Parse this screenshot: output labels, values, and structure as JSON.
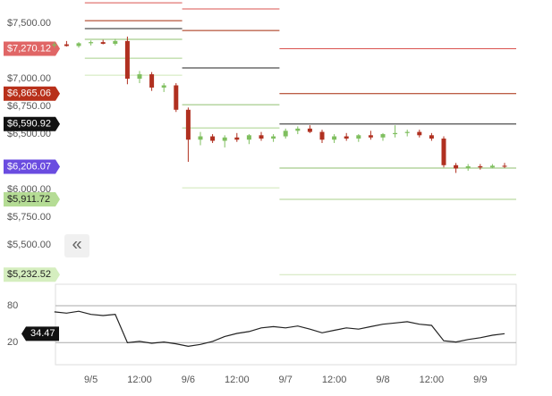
{
  "chart_data": [
    {
      "type": "candlestick",
      "categories": [
        null,
        null,
        null,
        "9/5",
        null,
        null,
        null,
        "12:00",
        null,
        null,
        null,
        "9/6",
        null,
        null,
        null,
        "12:00",
        null,
        null,
        null,
        "9/7",
        null,
        null,
        null,
        "12:00",
        null,
        null,
        null,
        "9/8",
        null,
        null,
        null,
        "12:00",
        null,
        null,
        null,
        "9/9",
        null,
        null
      ],
      "open": [
        7300,
        7310,
        7295,
        7320,
        7330,
        7315,
        7340,
        7000,
        7040,
        6920,
        6940,
        6720,
        6450,
        6480,
        6440,
        6470,
        6450,
        6490,
        6460,
        6480,
        6530,
        6550,
        6520,
        6450,
        6480,
        6460,
        6490,
        6470,
        6500,
        6510,
        6520,
        6490,
        6460,
        6220,
        6190,
        6210,
        6200,
        6215
      ],
      "high": [
        7330,
        7340,
        7330,
        7345,
        7350,
        7360,
        7380,
        7070,
        7060,
        6960,
        6960,
        6740,
        6520,
        6500,
        6490,
        6510,
        6500,
        6520,
        6500,
        6550,
        6570,
        6580,
        6540,
        6500,
        6510,
        6500,
        6530,
        6510,
        6580,
        6540,
        6540,
        6510,
        6480,
        6240,
        6230,
        6230,
        6230,
        6240
      ],
      "low": [
        7280,
        7290,
        7280,
        7300,
        7310,
        7300,
        6950,
        6960,
        6890,
        6880,
        6700,
        6250,
        6400,
        6420,
        6380,
        6430,
        6410,
        6440,
        6430,
        6460,
        6500,
        6510,
        6420,
        6420,
        6440,
        6430,
        6450,
        6440,
        6470,
        6480,
        6470,
        6440,
        6200,
        6150,
        6170,
        6180,
        6190,
        6195
      ],
      "close": [
        7310,
        7295,
        7320,
        7330,
        7315,
        7340,
        7000,
        7040,
        6920,
        6940,
        6720,
        6450,
        6480,
        6440,
        6470,
        6450,
        6490,
        6460,
        6480,
        6530,
        6550,
        6520,
        6450,
        6480,
        6460,
        6490,
        6470,
        6500,
        6510,
        6520,
        6490,
        6460,
        6220,
        6190,
        6210,
        6200,
        6215,
        6206.07
      ],
      "up_color": "#7fbf5f",
      "down_color": "#b03020",
      "ylim": [
        5170,
        7710
      ],
      "yticks": [
        {
          "value": 7500,
          "label": "$7,500.00"
        },
        {
          "value": 7000,
          "label": "$7,000.00"
        },
        {
          "value": 6750,
          "label": "$6,750.00"
        },
        {
          "value": 6500,
          "label": "$6,500.00"
        },
        {
          "value": 6000,
          "label": "$6,000.00"
        },
        {
          "value": 5750,
          "label": "$5,750.00"
        },
        {
          "value": 5500,
          "label": "$5,500.00"
        }
      ],
      "pivot_levels": [
        [
          7685,
          7524,
          7452,
          7355,
          7185,
          7032
        ],
        [
          7629,
          7435,
          7097,
          6766,
          6556,
          6016
        ],
        [
          {
            "value": 7270.12,
            "label": "$7,270.12"
          },
          {
            "value": 6865.06,
            "label": "$6,865.06"
          },
          {
            "value": 6590.92,
            "label": "$6,590.92"
          },
          6194,
          {
            "value": 5911.72,
            "label": "$5,911.72"
          },
          {
            "value": 5232.52,
            "label": "$5,232.52"
          }
        ]
      ],
      "pivot_colors": [
        "#d9534f",
        "#a52a0a",
        "#222222",
        "#8fbf6f",
        "#a8d08a",
        "#cfe6b8"
      ],
      "pivot_label_colors": [
        "#e06666",
        "#b8301a",
        "#111111",
        "#7fbf5f",
        "#b5dc95",
        "#d5eebf"
      ],
      "last_price": {
        "value": 6206.07,
        "label": "$6,206.07",
        "color": "#6a4ce0"
      }
    },
    {
      "type": "line",
      "values": [
        70,
        68,
        71,
        66,
        64,
        66,
        20,
        22,
        19,
        21,
        18,
        14,
        17,
        22,
        30,
        35,
        38,
        44,
        46,
        44,
        47,
        42,
        36,
        40,
        44,
        42,
        46,
        50,
        52,
        54,
        50,
        48,
        23,
        21,
        25,
        28,
        32,
        34.47
      ],
      "color": "#222222",
      "ylim": [
        -16,
        115
      ],
      "yticks": [
        80,
        20
      ]
    }
  ],
  "button": "«"
}
